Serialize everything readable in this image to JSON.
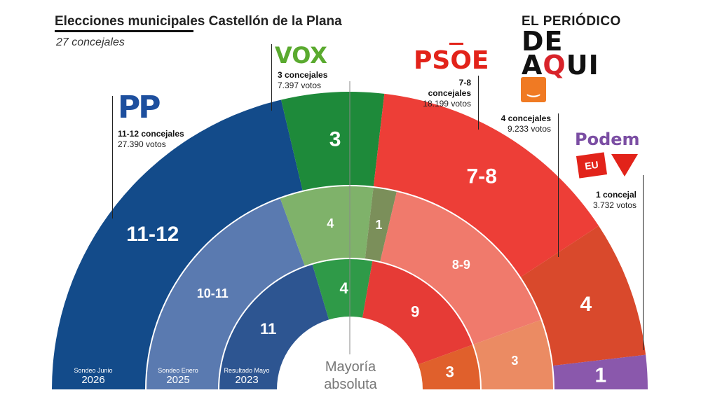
{
  "header": {
    "title": "Elecciones municipales Castellón de la Plana",
    "subtitle": "27 concejales"
  },
  "brand": {
    "line1": "EL PERIÓDICO",
    "line2a": "DE A",
    "line2b": "Q",
    "line2c": "UI"
  },
  "party_info": {
    "pp": {
      "seats": "11-12 concejales",
      "votes": "27.390 votos"
    },
    "vox": {
      "seats": "3 concejales",
      "votes": "7.397 votos"
    },
    "psoe": {
      "seats": "7-8 concejales",
      "votes": "18.199 votos"
    },
    "cs": {
      "seats": "4 concejales",
      "votes": "9.233 votos"
    },
    "podem": {
      "seats": "1 concejal",
      "votes": "3.732 votos"
    }
  },
  "logos": {
    "pp": "PP",
    "vox": "VOX",
    "psoe": "PSOE",
    "podem": "Podem",
    "cs_icon": "smile-icon",
    "eu": "EU"
  },
  "majority_label": {
    "line1": "Mayoría",
    "line2": "absoluta"
  },
  "colors": {
    "pp": [
      "#134b8a",
      "#5a7ab0",
      "#2d5591"
    ],
    "vox": [
      "#1e8a3a",
      "#7fb26a",
      "#2f9a48"
    ],
    "psoe": [
      "#ed3e37",
      "#f07a6c",
      "#e63b36"
    ],
    "cs": [
      "#d9492c",
      "#eb8b63",
      "#e0602c"
    ],
    "podem": [
      "#8a58ac"
    ],
    "vox_old": [
      "#7b8f5a"
    ]
  },
  "chart_data": {
    "type": "semicircle",
    "total_seats": 27,
    "rings": [
      {
        "label": "Sondeo Junio",
        "year": "2026",
        "segments": [
          {
            "party": "PP",
            "label": "11-12",
            "seats": 11.5
          },
          {
            "party": "VOX",
            "label": "3",
            "seats": 3
          },
          {
            "party": "PSOE",
            "label": "7-8",
            "seats": 7.5
          },
          {
            "party": "Cs",
            "label": "4",
            "seats": 4
          },
          {
            "party": "Podem",
            "label": "1",
            "seats": 1
          }
        ]
      },
      {
        "label": "Sondeo Enero",
        "year": "2025",
        "segments": [
          {
            "party": "PP",
            "label": "10-11",
            "seats": 10.5
          },
          {
            "party": "VOX",
            "label": "4",
            "seats": 4
          },
          {
            "party": "VOX2",
            "label": "1",
            "seats": 1
          },
          {
            "party": "PSOE",
            "label": "8-9",
            "seats": 8.5
          },
          {
            "party": "Cs",
            "label": "3",
            "seats": 3
          }
        ]
      },
      {
        "label": "Resultado Mayo",
        "year": "2023",
        "segments": [
          {
            "party": "PP",
            "label": "11",
            "seats": 11
          },
          {
            "party": "VOX",
            "label": "4",
            "seats": 4
          },
          {
            "party": "PSOE",
            "label": "9",
            "seats": 9
          },
          {
            "party": "Cs",
            "label": "3",
            "seats": 3
          }
        ]
      }
    ]
  }
}
